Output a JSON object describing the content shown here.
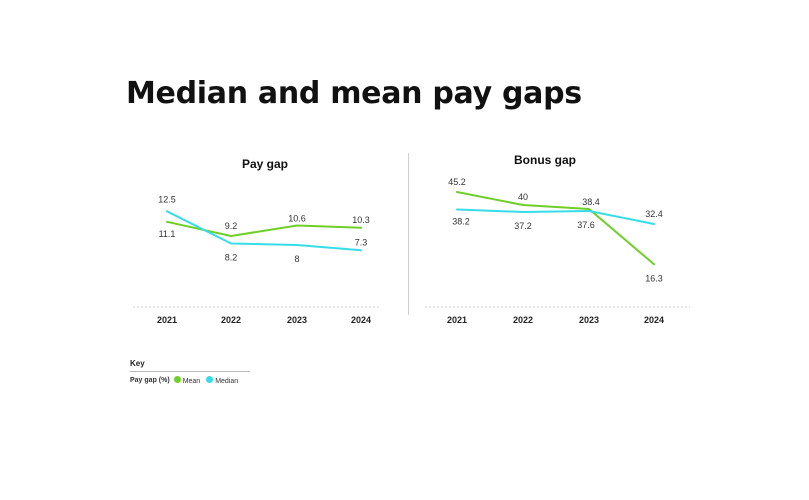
{
  "page": {
    "title": "Median and mean pay gaps"
  },
  "colors": {
    "mean": "#6ecf27",
    "median": "#36dde8",
    "axis": "#cfcfcf",
    "text": "#222222"
  },
  "key": {
    "title": "Key",
    "label": "Pay gap (%)",
    "entries": [
      {
        "name": "Mean",
        "color": "#6ecf27"
      },
      {
        "name": "Median",
        "color": "#36dde8"
      }
    ]
  },
  "chart_data": [
    {
      "type": "line",
      "title": "Pay gap",
      "categories": [
        "2021",
        "2022",
        "2023",
        "2024"
      ],
      "ylim": [
        0,
        20
      ],
      "series": [
        {
          "name": "Mean",
          "values": [
            11.1,
            9.2,
            10.6,
            10.3
          ]
        },
        {
          "name": "Median",
          "values": [
            12.5,
            8.2,
            8,
            7.3
          ]
        }
      ]
    },
    {
      "type": "line",
      "title": "Bonus gap",
      "categories": [
        "2021",
        "2022",
        "2023",
        "2024"
      ],
      "ylim": [
        0,
        60
      ],
      "series": [
        {
          "name": "Mean",
          "values": [
            45.2,
            40,
            38.4,
            16.3
          ]
        },
        {
          "name": "Median",
          "values": [
            38.2,
            37.2,
            37.6,
            32.4
          ]
        }
      ]
    }
  ]
}
